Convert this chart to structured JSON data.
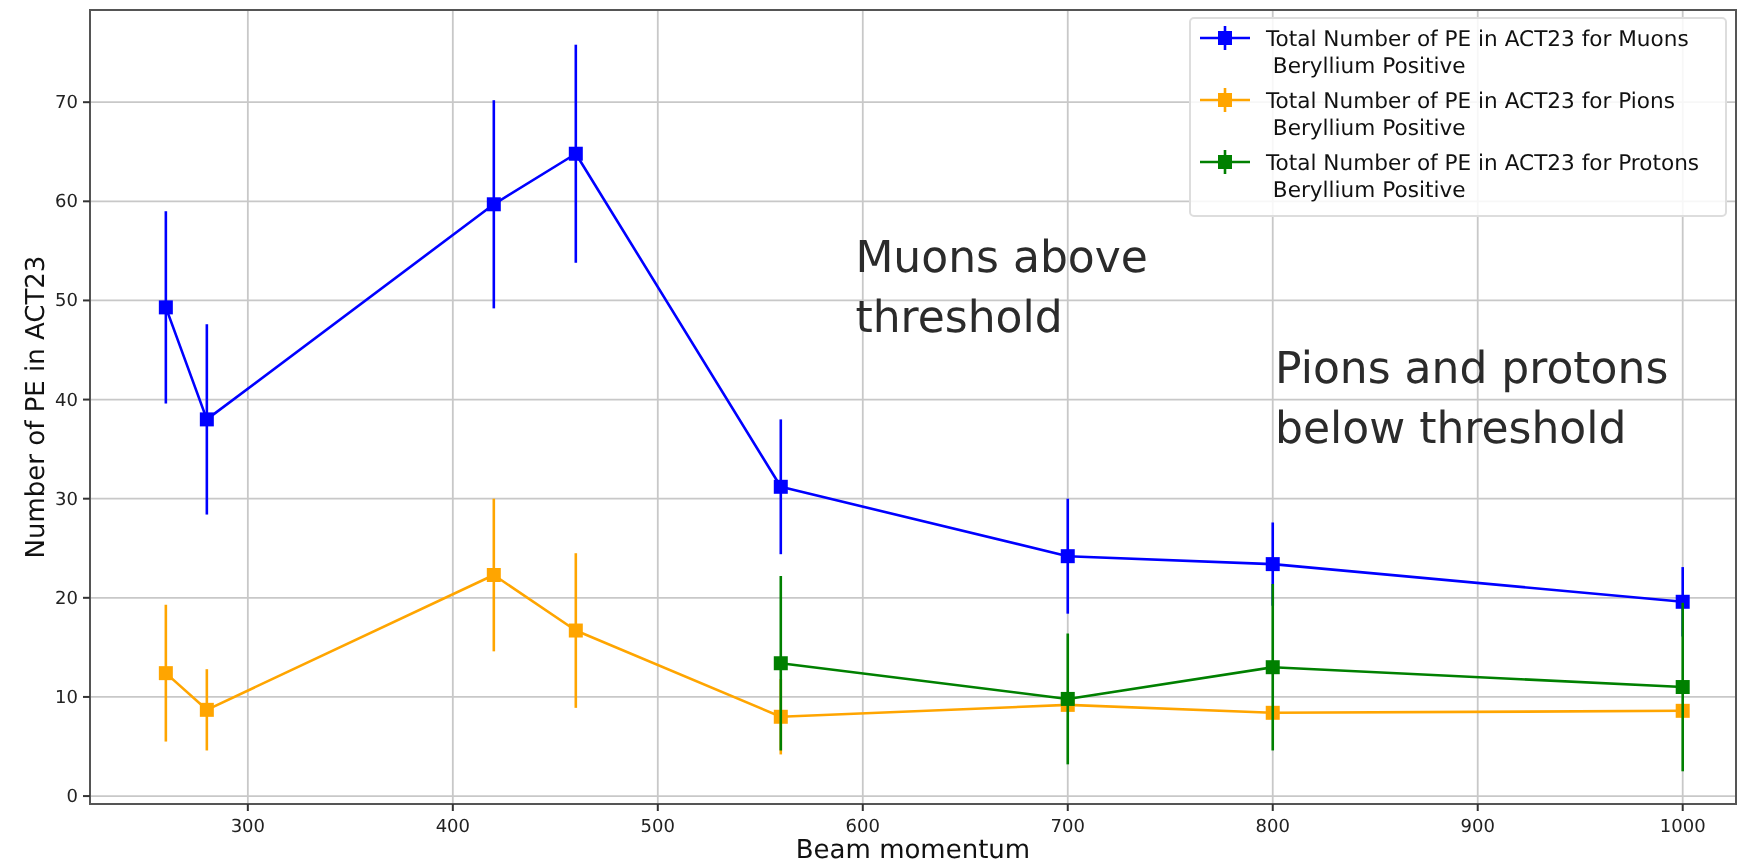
{
  "chart_data": {
    "type": "line",
    "xlabel": "Beam momentum",
    "ylabel": "Number of PE in ACT23",
    "xlim": [
      223,
      1026
    ],
    "ylim": [
      -0.8,
      79.3
    ],
    "xticks": [
      300,
      400,
      500,
      600,
      700,
      800,
      900,
      1000
    ],
    "yticks": [
      0,
      10,
      20,
      30,
      40,
      50,
      60,
      70
    ],
    "grid": true,
    "legend": "top right",
    "marker": "square",
    "line_style": "solid",
    "x": [
      260,
      280,
      420,
      460,
      560,
      700,
      800,
      1000
    ],
    "series": [
      {
        "name": "Total Number of PE in ACT23 for Muons\n Beryllium Positive",
        "color": "#0000ff",
        "values": [
          49.3,
          38.0,
          59.7,
          64.8,
          31.2,
          24.2,
          23.4,
          19.6
        ],
        "errors": [
          9.7,
          9.6,
          10.5,
          11.0,
          6.8,
          5.8,
          4.2,
          3.5
        ]
      },
      {
        "name": "Total Number of PE in ACT23 for Pions\n Beryllium Positive",
        "color": "#ffa500",
        "values": [
          12.4,
          8.7,
          22.3,
          16.7,
          8.0,
          9.2,
          8.4,
          8.6
        ],
        "errors": [
          6.9,
          4.1,
          7.7,
          7.8,
          3.8,
          null,
          null,
          null
        ]
      },
      {
        "name": "Total Number of PE in ACT23 for Protons\n Beryllium Positive",
        "color": "#008000",
        "x": [
          560,
          700,
          800,
          1000
        ],
        "values": [
          13.4,
          9.8,
          13.0,
          11.0
        ],
        "errors": [
          8.8,
          6.6,
          8.4,
          8.5
        ]
      }
    ],
    "annotations": [
      "Muons above\nthreshold",
      "Pions and protons\nbelow threshold"
    ]
  }
}
